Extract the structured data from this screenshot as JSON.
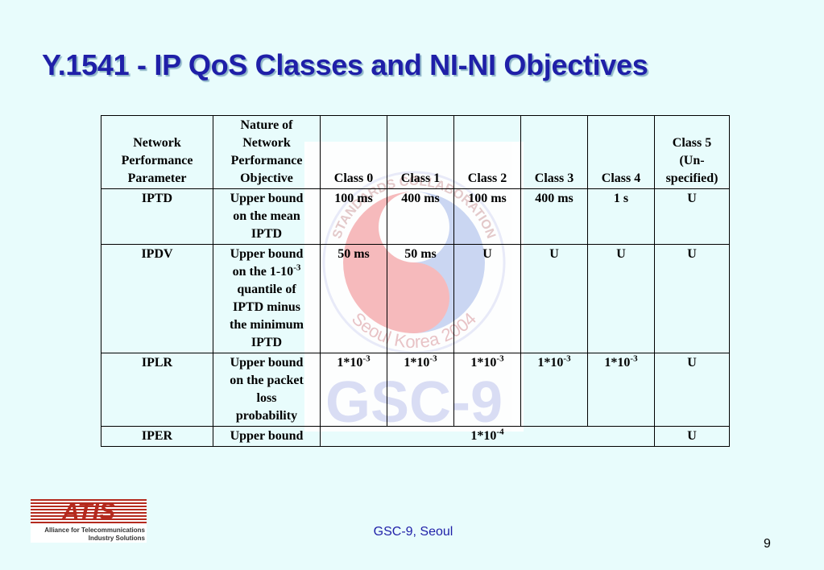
{
  "slide": {
    "title": "Y.1541 - IP QoS Classes and NI-NI Objectives",
    "footer": "GSC-9, Seoul",
    "page_number": "9"
  },
  "logo": {
    "name": "ATIS",
    "tagline_line1": "Alliance for Telecommunications",
    "tagline_line2": "Industry Solutions",
    "color": "#b42a1e"
  },
  "watermark": {
    "text_arc_top": "STANDARDS COLLABORATION",
    "text_arc_bottom": "Seoul Korea 2004",
    "text_bottom": "GSC-9"
  },
  "table": {
    "header": {
      "param": [
        "Network",
        "Performance",
        "Parameter"
      ],
      "nature": [
        "Nature of",
        "Network",
        "Performance",
        "Objective"
      ],
      "class0": "Class 0",
      "class1": "Class 1",
      "class2": "Class 2",
      "class3": "Class 3",
      "class4": "Class 4",
      "class5": [
        "Class 5",
        "(Un-",
        "specified)"
      ]
    },
    "rows": {
      "iptd": {
        "param": "IPTD",
        "nature": [
          "Upper bound",
          "on the mean",
          "IPTD"
        ],
        "c0": "100 ms",
        "c1": "400 ms",
        "c2": "100 ms",
        "c3": "400 ms",
        "c4": "1 s",
        "c5": "U"
      },
      "ipdv": {
        "param": "IPDV",
        "nature_pre": "Upper bound",
        "nature_line2": "on the 1-10",
        "nature_exp": "-3",
        "nature_post": [
          "quantile of",
          "IPTD minus",
          "the minimum",
          "IPTD"
        ],
        "c0": "50 ms",
        "c1": "50 ms",
        "c2": "U",
        "c3": "U",
        "c4": "U",
        "c5": "U"
      },
      "iplr": {
        "param": "IPLR",
        "nature": [
          "Upper bound",
          "on the packet",
          "loss",
          "probability"
        ],
        "base": "1*10",
        "exp": "-3",
        "c5": "U"
      },
      "iper": {
        "param": "IPER",
        "nature": "Upper bound",
        "base": "1*10",
        "exp": "-4",
        "c5": "U"
      }
    }
  }
}
